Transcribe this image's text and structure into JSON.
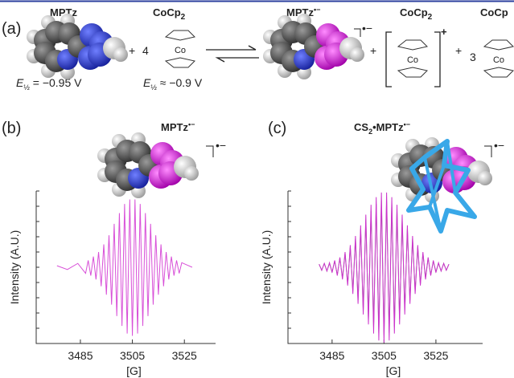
{
  "panel_a": {
    "label": "(a)",
    "mptz": "MPTz",
    "cocp": {
      "base": "CoCp",
      "sub": "2"
    },
    "plus1": "+",
    "coeff1": "4",
    "co1": "Co",
    "product": {
      "base": "MPTz",
      "sup": "•−"
    },
    "radical_mark": "•−",
    "plus2": "+",
    "cation": {
      "base": "CoCp",
      "sub": "2",
      "sup": "+"
    },
    "co2": "Co",
    "plus3": "+",
    "coeff2": "3",
    "co3": "Co",
    "cocp_cut": "CoCp",
    "e1": {
      "symbol": "E",
      "sub": "½",
      "text": " = −0.95 V"
    },
    "e2": {
      "symbol": "E",
      "sub": "½",
      "text": " ≈ −0.9 V"
    }
  },
  "chart_data": [
    {
      "type": "line",
      "label": "(b)",
      "title": {
        "base": "MPTz",
        "sup": "•−"
      },
      "radical_mark": "•−",
      "ylabel": "Intensity (A.U.)",
      "xlabel": "[G]",
      "xlim": [
        3468,
        3537
      ],
      "xticks": [
        3485,
        3505,
        3525
      ],
      "ylim": [
        -1,
        1
      ],
      "x": [
        3476,
        3480,
        3484,
        3487,
        3488,
        3489,
        3490,
        3491,
        3492,
        3493,
        3494,
        3495,
        3496,
        3497,
        3498,
        3499,
        3500,
        3501,
        3502,
        3503,
        3504,
        3505,
        3506,
        3507,
        3508,
        3509,
        3510,
        3511,
        3512,
        3513,
        3514,
        3515,
        3516,
        3517,
        3518,
        3519,
        3520,
        3521,
        3522,
        3523,
        3524,
        3526,
        3528
      ],
      "series": [
        {
          "color": "#d84fd8",
          "values": [
            0.02,
            -0.03,
            0.05,
            -0.08,
            0.09,
            -0.11,
            0.14,
            -0.16,
            0.2,
            -0.25,
            0.3,
            -0.36,
            0.42,
            -0.49,
            0.57,
            -0.64,
            0.71,
            -0.77,
            0.83,
            -0.87,
            0.89,
            -0.9,
            0.89,
            -0.87,
            0.83,
            -0.77,
            0.71,
            -0.64,
            0.57,
            -0.49,
            0.42,
            -0.36,
            0.3,
            -0.25,
            0.2,
            -0.16,
            0.14,
            -0.11,
            0.09,
            -0.08,
            0.06,
            0.03,
            0
          ]
        }
      ]
    },
    {
      "type": "line",
      "label": "(c)",
      "title": {
        "base": "CS",
        "sub": "2",
        "mid": "•MPTz",
        "sup": "•−"
      },
      "radical_mark": "•−",
      "ylabel": "Intensity (A.U.)",
      "xlabel": "[G]",
      "xlim": [
        3468,
        3543
      ],
      "xticks": [
        3485,
        3505,
        3525
      ],
      "ylim": [
        -1,
        1
      ],
      "x": [
        3480,
        3481,
        3482,
        3483,
        3484,
        3485,
        3486,
        3487,
        3488,
        3489,
        3490,
        3491,
        3492,
        3493,
        3494,
        3495,
        3496,
        3497,
        3498,
        3499,
        3500,
        3501,
        3502,
        3503,
        3504,
        3505,
        3506,
        3507,
        3508,
        3509,
        3510,
        3511,
        3512,
        3513,
        3514,
        3515,
        3516,
        3517,
        3518,
        3519,
        3520,
        3521,
        3522,
        3523,
        3524,
        3525,
        3526,
        3527,
        3528,
        3529,
        3530
      ],
      "series": [
        {
          "color": "#888888",
          "values": [
            0.04,
            -0.04,
            0.05,
            -0.05,
            0.05,
            -0.06,
            0.08,
            -0.1,
            0.12,
            -0.14,
            0.18,
            -0.22,
            0.26,
            -0.31,
            0.37,
            -0.43,
            0.5,
            -0.56,
            0.62,
            -0.68,
            0.74,
            -0.78,
            0.83,
            -0.86,
            0.88,
            -0.89,
            0.88,
            -0.86,
            0.83,
            -0.78,
            0.74,
            -0.68,
            0.62,
            -0.56,
            0.5,
            -0.43,
            0.37,
            -0.31,
            0.26,
            -0.22,
            0.18,
            -0.14,
            0.12,
            -0.1,
            0.08,
            -0.06,
            0.05,
            -0.05,
            0.05,
            -0.04,
            0.04
          ]
        },
        {
          "color": "#cc33cc",
          "values": [
            0.04,
            -0.04,
            0.05,
            -0.05,
            0.06,
            -0.07,
            0.09,
            -0.11,
            0.13,
            -0.16,
            0.2,
            -0.24,
            0.29,
            -0.35,
            0.41,
            -0.48,
            0.55,
            -0.62,
            0.69,
            -0.75,
            0.82,
            -0.87,
            0.92,
            -0.96,
            0.98,
            -0.99,
            0.98,
            -0.96,
            0.92,
            -0.87,
            0.82,
            -0.75,
            0.69,
            -0.62,
            0.55,
            -0.48,
            0.41,
            -0.35,
            0.29,
            -0.24,
            0.2,
            -0.16,
            0.13,
            -0.11,
            0.09,
            -0.07,
            0.06,
            -0.05,
            0.05,
            -0.04,
            0.04
          ]
        }
      ]
    }
  ]
}
